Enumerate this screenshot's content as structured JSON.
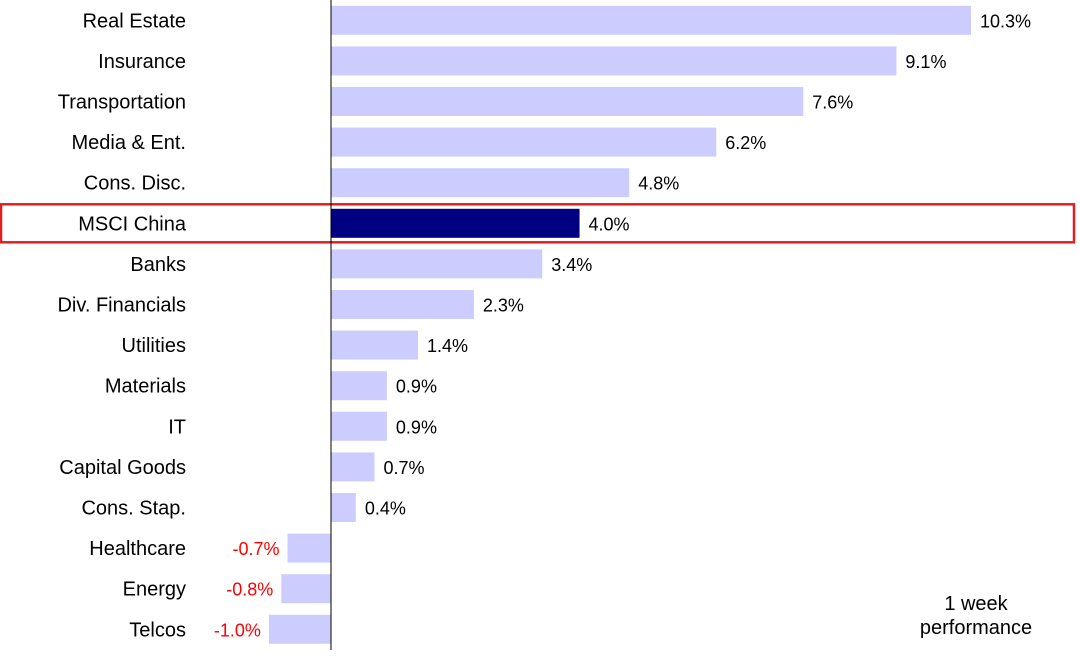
{
  "chart_data": {
    "type": "bar",
    "orientation": "horizontal",
    "categories": [
      "Real Estate",
      "Insurance",
      "Transportation",
      "Media & Ent.",
      "Cons. Disc.",
      "MSCI China",
      "Banks",
      "Div. Financials",
      "Utilities",
      "Materials",
      "IT",
      "Capital Goods",
      "Cons. Stap.",
      "Healthcare",
      "Energy",
      "Telcos"
    ],
    "values": [
      10.3,
      9.1,
      7.6,
      6.2,
      4.8,
      4.0,
      3.4,
      2.3,
      1.4,
      0.9,
      0.9,
      0.7,
      0.4,
      -0.7,
      -0.8,
      -1.0
    ],
    "labels": [
      "10.3%",
      "9.1%",
      "7.6%",
      "6.2%",
      "4.8%",
      "4.0%",
      "3.4%",
      "2.3%",
      "1.4%",
      "0.9%",
      "0.9%",
      "0.7%",
      "0.4%",
      "-0.7%",
      "-0.8%",
      "-1.0%"
    ],
    "highlight": "MSCI China",
    "xlim": [
      -1.0,
      10.3
    ],
    "grid": false,
    "annotation": "1 week performance",
    "annotation_lines": [
      "1 week",
      "performance"
    ],
    "colors": {
      "bar": "#ccccff",
      "highlight_bar": "#000080",
      "highlight_box": "#e02020",
      "negative_label": "#ff0000",
      "positive_label": "#000000",
      "axis": "#000000"
    }
  }
}
